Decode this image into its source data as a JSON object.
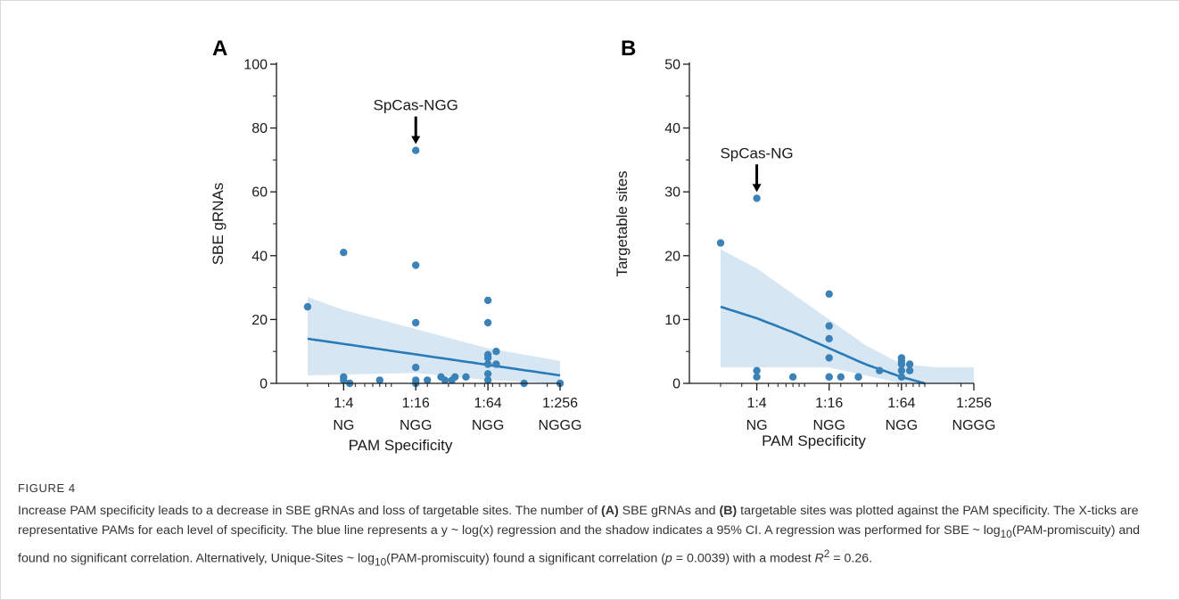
{
  "chart_data": [
    {
      "panel": "A",
      "type": "scatter",
      "ylabel": "SBE gRNAs",
      "xlabel": "PAM Specificity",
      "ylim": [
        0,
        100
      ],
      "yticks": [
        0,
        20,
        40,
        60,
        80,
        100
      ],
      "x_scale": "log",
      "xlim": [
        1.1,
        256
      ],
      "xticks": [
        {
          "value": 4,
          "label1": "1:4",
          "label2": "NG"
        },
        {
          "value": 16,
          "label1": "1:16",
          "label2": "NGG"
        },
        {
          "value": 64,
          "label1": "1:64",
          "label2": "NGG"
        },
        {
          "value": 256,
          "label1": "1:256",
          "label2": "NGGG"
        }
      ],
      "annotation": {
        "text": "SpCas-NGG",
        "x": 16,
        "y": 73
      },
      "points": [
        {
          "x": 2,
          "y": 24
        },
        {
          "x": 4,
          "y": 41
        },
        {
          "x": 4,
          "y": 2
        },
        {
          "x": 4,
          "y": 1
        },
        {
          "x": 4.5,
          "y": 0
        },
        {
          "x": 8,
          "y": 1
        },
        {
          "x": 16,
          "y": 73
        },
        {
          "x": 16,
          "y": 37
        },
        {
          "x": 16,
          "y": 19
        },
        {
          "x": 16,
          "y": 5
        },
        {
          "x": 16,
          "y": 1
        },
        {
          "x": 16,
          "y": 0
        },
        {
          "x": 20,
          "y": 1
        },
        {
          "x": 26,
          "y": 2
        },
        {
          "x": 28,
          "y": 1
        },
        {
          "x": 32,
          "y": 1
        },
        {
          "x": 34,
          "y": 2
        },
        {
          "x": 42,
          "y": 2
        },
        {
          "x": 64,
          "y": 26
        },
        {
          "x": 64,
          "y": 19
        },
        {
          "x": 64,
          "y": 9
        },
        {
          "x": 64,
          "y": 8
        },
        {
          "x": 64,
          "y": 6
        },
        {
          "x": 64,
          "y": 3
        },
        {
          "x": 64,
          "y": 1
        },
        {
          "x": 75,
          "y": 10
        },
        {
          "x": 75,
          "y": 6
        },
        {
          "x": 128,
          "y": 0
        },
        {
          "x": 256,
          "y": 0
        }
      ],
      "fit": [
        [
          2,
          14
        ],
        [
          256,
          2.5
        ]
      ],
      "ci_upper": [
        [
          2,
          27
        ],
        [
          4,
          23
        ],
        [
          16,
          17
        ],
        [
          64,
          11
        ],
        [
          256,
          7
        ]
      ],
      "ci_lower": [
        [
          2,
          2.5
        ],
        [
          16,
          3.3
        ],
        [
          64,
          1
        ],
        [
          256,
          0
        ]
      ],
      "panel_label": "A"
    },
    {
      "panel": "B",
      "type": "scatter",
      "ylabel": "Targetable sites",
      "xlabel": "PAM Specificity",
      "ylim": [
        0,
        50
      ],
      "yticks": [
        0,
        10,
        20,
        30,
        40,
        50
      ],
      "x_scale": "log",
      "xlim": [
        1.1,
        256
      ],
      "xticks": [
        {
          "value": 4,
          "label1": "1:4",
          "label2": "NG"
        },
        {
          "value": 16,
          "label1": "1:16",
          "label2": "NGG"
        },
        {
          "value": 64,
          "label1": "1:64",
          "label2": "NGG"
        },
        {
          "value": 256,
          "label1": "1:256",
          "label2": "NGGG"
        }
      ],
      "annotation": {
        "text": "SpCas-NG",
        "x": 4,
        "y": 29
      },
      "points": [
        {
          "x": 2,
          "y": 22
        },
        {
          "x": 4,
          "y": 29
        },
        {
          "x": 4,
          "y": 2
        },
        {
          "x": 4,
          "y": 1
        },
        {
          "x": 8,
          "y": 1
        },
        {
          "x": 16,
          "y": 14
        },
        {
          "x": 16,
          "y": 9
        },
        {
          "x": 16,
          "y": 7
        },
        {
          "x": 16,
          "y": 4
        },
        {
          "x": 16,
          "y": 1
        },
        {
          "x": 16,
          "y": 1
        },
        {
          "x": 20,
          "y": 1
        },
        {
          "x": 28,
          "y": 1
        },
        {
          "x": 28,
          "y": 1
        },
        {
          "x": 42,
          "y": 2
        },
        {
          "x": 64,
          "y": 4
        },
        {
          "x": 64,
          "y": 3.5
        },
        {
          "x": 64,
          "y": 3
        },
        {
          "x": 64,
          "y": 2
        },
        {
          "x": 64,
          "y": 1
        },
        {
          "x": 75,
          "y": 3
        },
        {
          "x": 75,
          "y": 2
        }
      ],
      "fit": [
        [
          2,
          12
        ],
        [
          4,
          10.2
        ],
        [
          8,
          8
        ],
        [
          16,
          5.5
        ],
        [
          32,
          3
        ],
        [
          64,
          1
        ],
        [
          100,
          0
        ]
      ],
      "ci_upper": [
        [
          2,
          21
        ],
        [
          4,
          18
        ],
        [
          8,
          14
        ],
        [
          16,
          10
        ],
        [
          32,
          6
        ],
        [
          64,
          3
        ],
        [
          128,
          2.5
        ],
        [
          256,
          2.5
        ]
      ],
      "ci_lower": [
        [
          2,
          2.5
        ],
        [
          16,
          2.5
        ],
        [
          64,
          0
        ],
        [
          256,
          0
        ]
      ],
      "panel_label": "B"
    }
  ],
  "colors": {
    "points": "#3b82b8",
    "fit_line": "#2a7ab8",
    "ci_band": "#d6e6f2",
    "axis": "#1a1a1a"
  },
  "caption": {
    "figure_label": "FIGURE 4",
    "text_parts": {
      "p1": "Increase PAM specificity leads to a decrease in SBE gRNAs and loss of targetable sites. The number of ",
      "a_ref": "(A)",
      "p2": " SBE gRNAs and ",
      "b_ref": "(B)",
      "p3": " targetable sites was plotted against the PAM specificity. The X-ticks are representative PAMs for each level of specificity. The blue line represents a y ~ log(x) regression and the shadow indicates a 95% CI. A regression was performed for SBE ~ log",
      "sub1": "10",
      "p4": "(PAM-promiscuity) and found no significant correlation. Alternatively, Unique-Sites ~ log",
      "sub2": "10",
      "p5": "(PAM-promiscuity) found a significant correlation (",
      "p_var": "p",
      "p6": " = 0.0039) with a modest ",
      "r_var": "R",
      "r_sup": "2",
      "p7": " = 0.26."
    }
  }
}
